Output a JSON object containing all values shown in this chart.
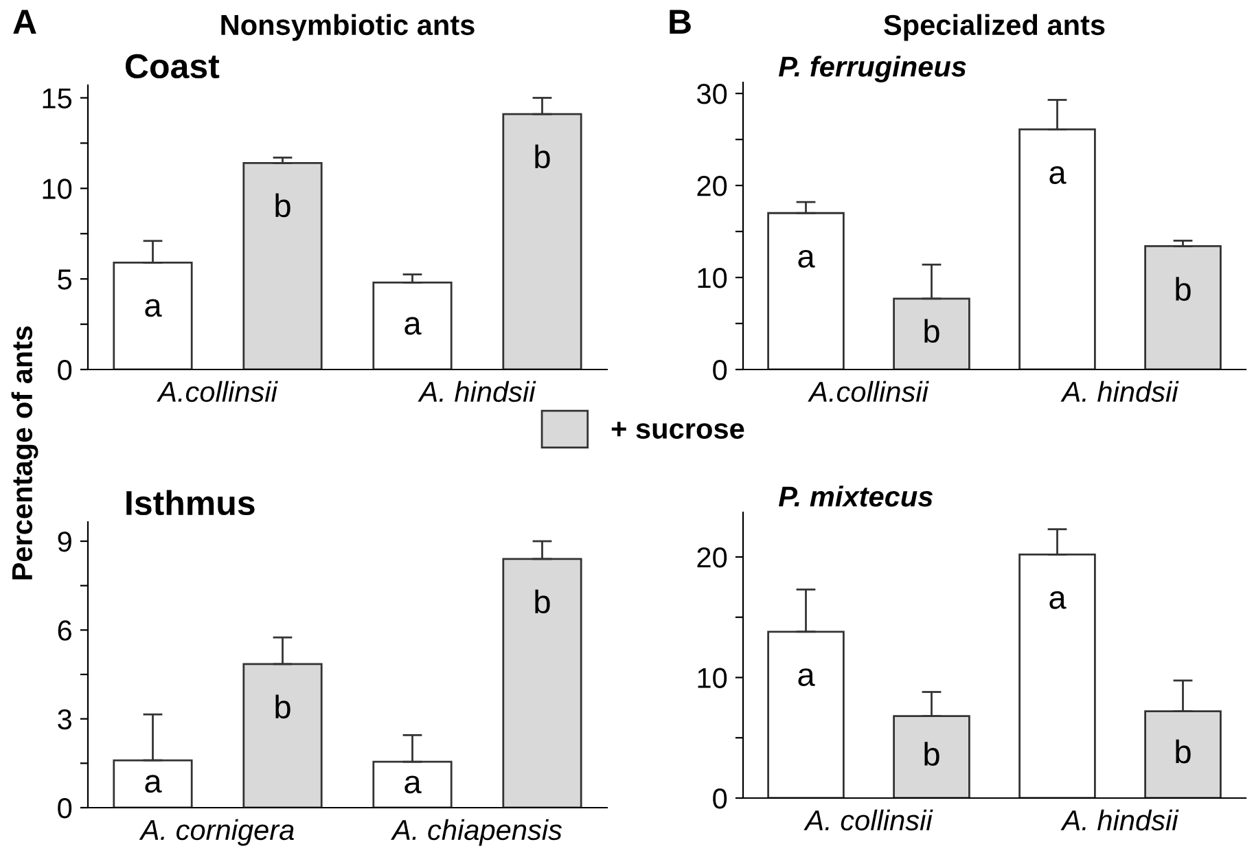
{
  "chart_data": [
    {
      "type": "bar",
      "title": "Coast",
      "ylabel": "Percentage of ants",
      "annotations": [
        "A",
        "Nonsymbiotic ants"
      ],
      "categories": [
        "A.collinsii",
        "A. hindsii"
      ],
      "legend": "bottom",
      "series": [
        {
          "color": "#ffffff",
          "values": [
            5.9,
            4.8
          ],
          "errors": [
            [
              5.9,
              7.1
            ],
            [
              4.8,
              5.25
            ]
          ],
          "value_labels": [
            "a",
            "a"
          ]
        },
        {
          "name": "+ sucrose",
          "color": "#d9d9d9",
          "values": [
            11.4,
            14.1
          ],
          "errors": [
            [
              11.4,
              11.7
            ],
            [
              14.1,
              15.0
            ]
          ],
          "value_labels": [
            "b",
            "b"
          ]
        }
      ],
      "ylim": [
        0,
        15.7
      ],
      "yticks": [
        0,
        {
          "value": 2.5,
          "label": null
        },
        5,
        {
          "value": 7.5,
          "label": null
        },
        10,
        {
          "value": 12.5,
          "label": null
        },
        15
      ]
    },
    {
      "type": "bar",
      "title": "P. ferrugineus",
      "annotations": [
        "B",
        "Specialized ants"
      ],
      "categories": [
        "A.collinsii",
        "A. hindsii"
      ],
      "series": [
        {
          "color": "#ffffff",
          "values": [
            17.0,
            26.1
          ],
          "errors": [
            [
              17.0,
              18.2
            ],
            [
              26.1,
              29.3
            ]
          ],
          "value_labels": [
            "a",
            "a"
          ]
        },
        {
          "color": "#d9d9d9",
          "values": [
            7.7,
            13.4
          ],
          "errors": [
            [
              7.7,
              11.4
            ],
            [
              13.4,
              14.0
            ]
          ],
          "value_labels": [
            "b",
            "b"
          ]
        }
      ],
      "ylim": [
        0,
        31.2
      ],
      "yticks": [
        0,
        {
          "value": 5,
          "label": null
        },
        10,
        {
          "value": 15,
          "label": null
        },
        20,
        {
          "value": 25,
          "label": null
        },
        30
      ]
    },
    {
      "type": "bar",
      "title": "Isthmus",
      "categories": [
        "A. cornigera",
        "A. chiapensis"
      ],
      "series": [
        {
          "color": "#ffffff",
          "values": [
            1.6,
            1.55
          ],
          "errors": [
            [
              1.6,
              3.15
            ],
            [
              1.55,
              2.45
            ]
          ],
          "value_labels": [
            "a",
            "a"
          ]
        },
        {
          "color": "#d9d9d9",
          "values": [
            4.85,
            8.4
          ],
          "errors": [
            [
              4.85,
              5.75
            ],
            [
              8.4,
              9.0
            ]
          ],
          "value_labels": [
            "b",
            "b"
          ]
        }
      ],
      "ylim": [
        0,
        9.65
      ],
      "yticks": [
        0,
        {
          "value": 1.5,
          "label": null
        },
        3,
        {
          "value": 4.5,
          "label": null
        },
        6,
        {
          "value": 7.5,
          "label": null
        },
        9
      ]
    },
    {
      "type": "bar",
      "title": "P. mixtecus",
      "categories": [
        "A. collinsii",
        "A. hindsii"
      ],
      "series": [
        {
          "color": "#ffffff",
          "values": [
            13.8,
            20.2
          ],
          "errors": [
            [
              13.8,
              17.3
            ],
            [
              20.2,
              22.3
            ]
          ],
          "value_labels": [
            "a",
            "a"
          ]
        },
        {
          "color": "#d9d9d9",
          "values": [
            6.8,
            7.2
          ],
          "errors": [
            [
              6.8,
              8.8
            ],
            [
              7.2,
              9.75
            ]
          ],
          "value_labels": [
            "b",
            "b"
          ]
        }
      ],
      "ylim": [
        0,
        23.7
      ],
      "yticks": [
        0,
        {
          "value": 5,
          "label": null
        },
        10,
        {
          "value": 15,
          "label": null
        },
        20
      ]
    }
  ]
}
